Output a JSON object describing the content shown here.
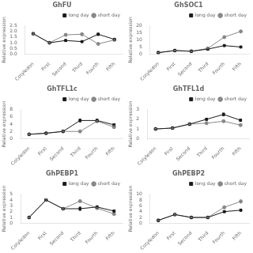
{
  "chart_data": [
    {
      "type": "line",
      "title": "GhFU",
      "ylabel": "Relative expression",
      "categories": [
        "Cotyledon",
        "First",
        "Second",
        "Third",
        "Fourth",
        "Fifth"
      ],
      "series": [
        {
          "name": "long day",
          "color": "#1a1a1a",
          "marker": "square",
          "values": [
            1.8,
            1.0,
            1.2,
            1.1,
            1.75,
            1.3
          ],
          "errors": [
            0.05,
            0.05,
            0.05,
            0.05,
            0.1,
            0.08
          ]
        },
        {
          "name": "short day",
          "color": "#888888",
          "marker": "circle",
          "values": [
            1.8,
            1.0,
            1.7,
            1.75,
            0.9,
            1.25
          ],
          "errors": [
            0.05,
            0.05,
            0.1,
            0.1,
            0.05,
            0.08
          ]
        }
      ],
      "ylim": [
        0.0,
        2.5
      ],
      "yticks": [
        {
          "value": 0.0,
          "label": "0.0"
        },
        0.5,
        {
          "value": 1.0,
          "label": "1.0"
        },
        1.5,
        {
          "value": 2.0,
          "label": "2.0"
        },
        2.5
      ],
      "grid": false,
      "legend": "upper right"
    },
    {
      "type": "line",
      "title": "GhSOC1",
      "ylabel": "Relative expression",
      "categories": [
        "Cotyledon",
        "First",
        "Second",
        "Third",
        "Fourth",
        "Fifth"
      ],
      "series": [
        {
          "name": "long day",
          "color": "#1a1a1a",
          "marker": "square",
          "values": [
            1.0,
            2.5,
            2.0,
            3.5,
            6.0,
            5.0
          ],
          "errors": [
            0.05,
            0.2,
            0.15,
            0.2,
            0.3,
            0.4
          ]
        },
        {
          "name": "short day",
          "color": "#888888",
          "marker": "circle",
          "values": [
            1.0,
            2.5,
            2.0,
            4.0,
            12.0,
            16.0
          ],
          "errors": [
            0.05,
            0.2,
            0.15,
            0.3,
            0.5,
            0.6
          ]
        }
      ],
      "ylim": [
        0,
        20
      ],
      "yticks": [
        0,
        5,
        10,
        15,
        20
      ],
      "grid": false,
      "legend": "upper right"
    },
    {
      "type": "line",
      "title": "GhTFL1c",
      "ylabel": "Relative expression",
      "categories": [
        "Cotyledon",
        "First",
        "Second",
        "Third",
        "Fourth",
        "Fifth"
      ],
      "series": [
        {
          "name": "long day",
          "color": "#1a1a1a",
          "marker": "square",
          "values": [
            1.2,
            1.5,
            2.0,
            5.0,
            5.0,
            3.8
          ],
          "errors": [
            0.1,
            0.05,
            0.1,
            0.4,
            0.4,
            0.3
          ]
        },
        {
          "name": "short day",
          "color": "#888888",
          "marker": "circle",
          "values": [
            1.2,
            1.5,
            2.0,
            2.0,
            4.8,
            3.2
          ],
          "errors": [
            0.1,
            0.05,
            0.1,
            0.15,
            0.2,
            0.4
          ]
        }
      ],
      "ylim": [
        0,
        8
      ],
      "yticks": [
        0,
        2,
        4,
        6,
        8
      ],
      "grid": false,
      "legend": "upper right"
    },
    {
      "type": "line",
      "title": "GhTFL1d",
      "ylabel": "Relative expression",
      "categories": [
        "Cotyledon",
        "First",
        "Second",
        "Third",
        "Fourth",
        "Fifth"
      ],
      "series": [
        {
          "name": "long day",
          "color": "#1a1a1a",
          "marker": "square",
          "values": [
            1.0,
            1.1,
            1.5,
            2.0,
            2.5,
            1.9
          ],
          "errors": [
            0.05,
            0.05,
            0.05,
            0.1,
            0.15,
            0.1
          ]
        },
        {
          "name": "short day",
          "color": "#888888",
          "marker": "circle",
          "values": [
            1.0,
            1.1,
            1.5,
            1.6,
            1.8,
            1.4
          ],
          "errors": [
            0.05,
            0.05,
            0.05,
            0.1,
            0.1,
            0.1
          ]
        }
      ],
      "ylim": [
        0,
        3
      ],
      "yticks": [
        0,
        1,
        2,
        3
      ],
      "grid": false,
      "legend": "upper right"
    },
    {
      "type": "line",
      "title": "GhPEBP1",
      "ylabel": "Relative expression",
      "categories": [
        "Cotyledon",
        "First",
        "Second",
        "Third",
        "Fourth",
        "Fifth"
      ],
      "series": [
        {
          "name": "long day",
          "color": "#1a1a1a",
          "marker": "square",
          "values": [
            1.0,
            4.0,
            2.5,
            2.5,
            2.8,
            2.1
          ],
          "errors": [
            0.05,
            0.2,
            0.15,
            0.3,
            0.2,
            0.15
          ]
        },
        {
          "name": "short day",
          "color": "#888888",
          "marker": "circle",
          "values": [
            1.0,
            4.0,
            2.5,
            3.8,
            2.6,
            1.6
          ],
          "errors": [
            0.05,
            0.2,
            0.15,
            0.15,
            0.15,
            0.1
          ]
        }
      ],
      "ylim": [
        0,
        5
      ],
      "yticks": [
        0,
        1,
        2,
        3,
        4,
        5
      ],
      "grid": false,
      "legend": "upper right"
    },
    {
      "type": "line",
      "title": "GhPEBP2",
      "ylabel": "Relative expression",
      "categories": [
        "Cotyledon",
        "First",
        "Second",
        "Third",
        "Fourth",
        "Fifth"
      ],
      "series": [
        {
          "name": "long day",
          "color": "#1a1a1a",
          "marker": "square",
          "values": [
            1.0,
            3.0,
            2.0,
            2.0,
            4.0,
            4.5
          ],
          "errors": [
            0.05,
            0.2,
            0.1,
            0.1,
            0.3,
            0.3
          ]
        },
        {
          "name": "short day",
          "color": "#888888",
          "marker": "circle",
          "values": [
            1.0,
            3.0,
            2.0,
            2.0,
            5.5,
            7.5
          ],
          "errors": [
            0.05,
            0.2,
            0.1,
            0.1,
            0.4,
            0.5
          ]
        }
      ],
      "ylim": [
        0,
        10
      ],
      "yticks": [
        0,
        2,
        4,
        6,
        8,
        10
      ],
      "grid": false,
      "legend": "upper right"
    }
  ]
}
